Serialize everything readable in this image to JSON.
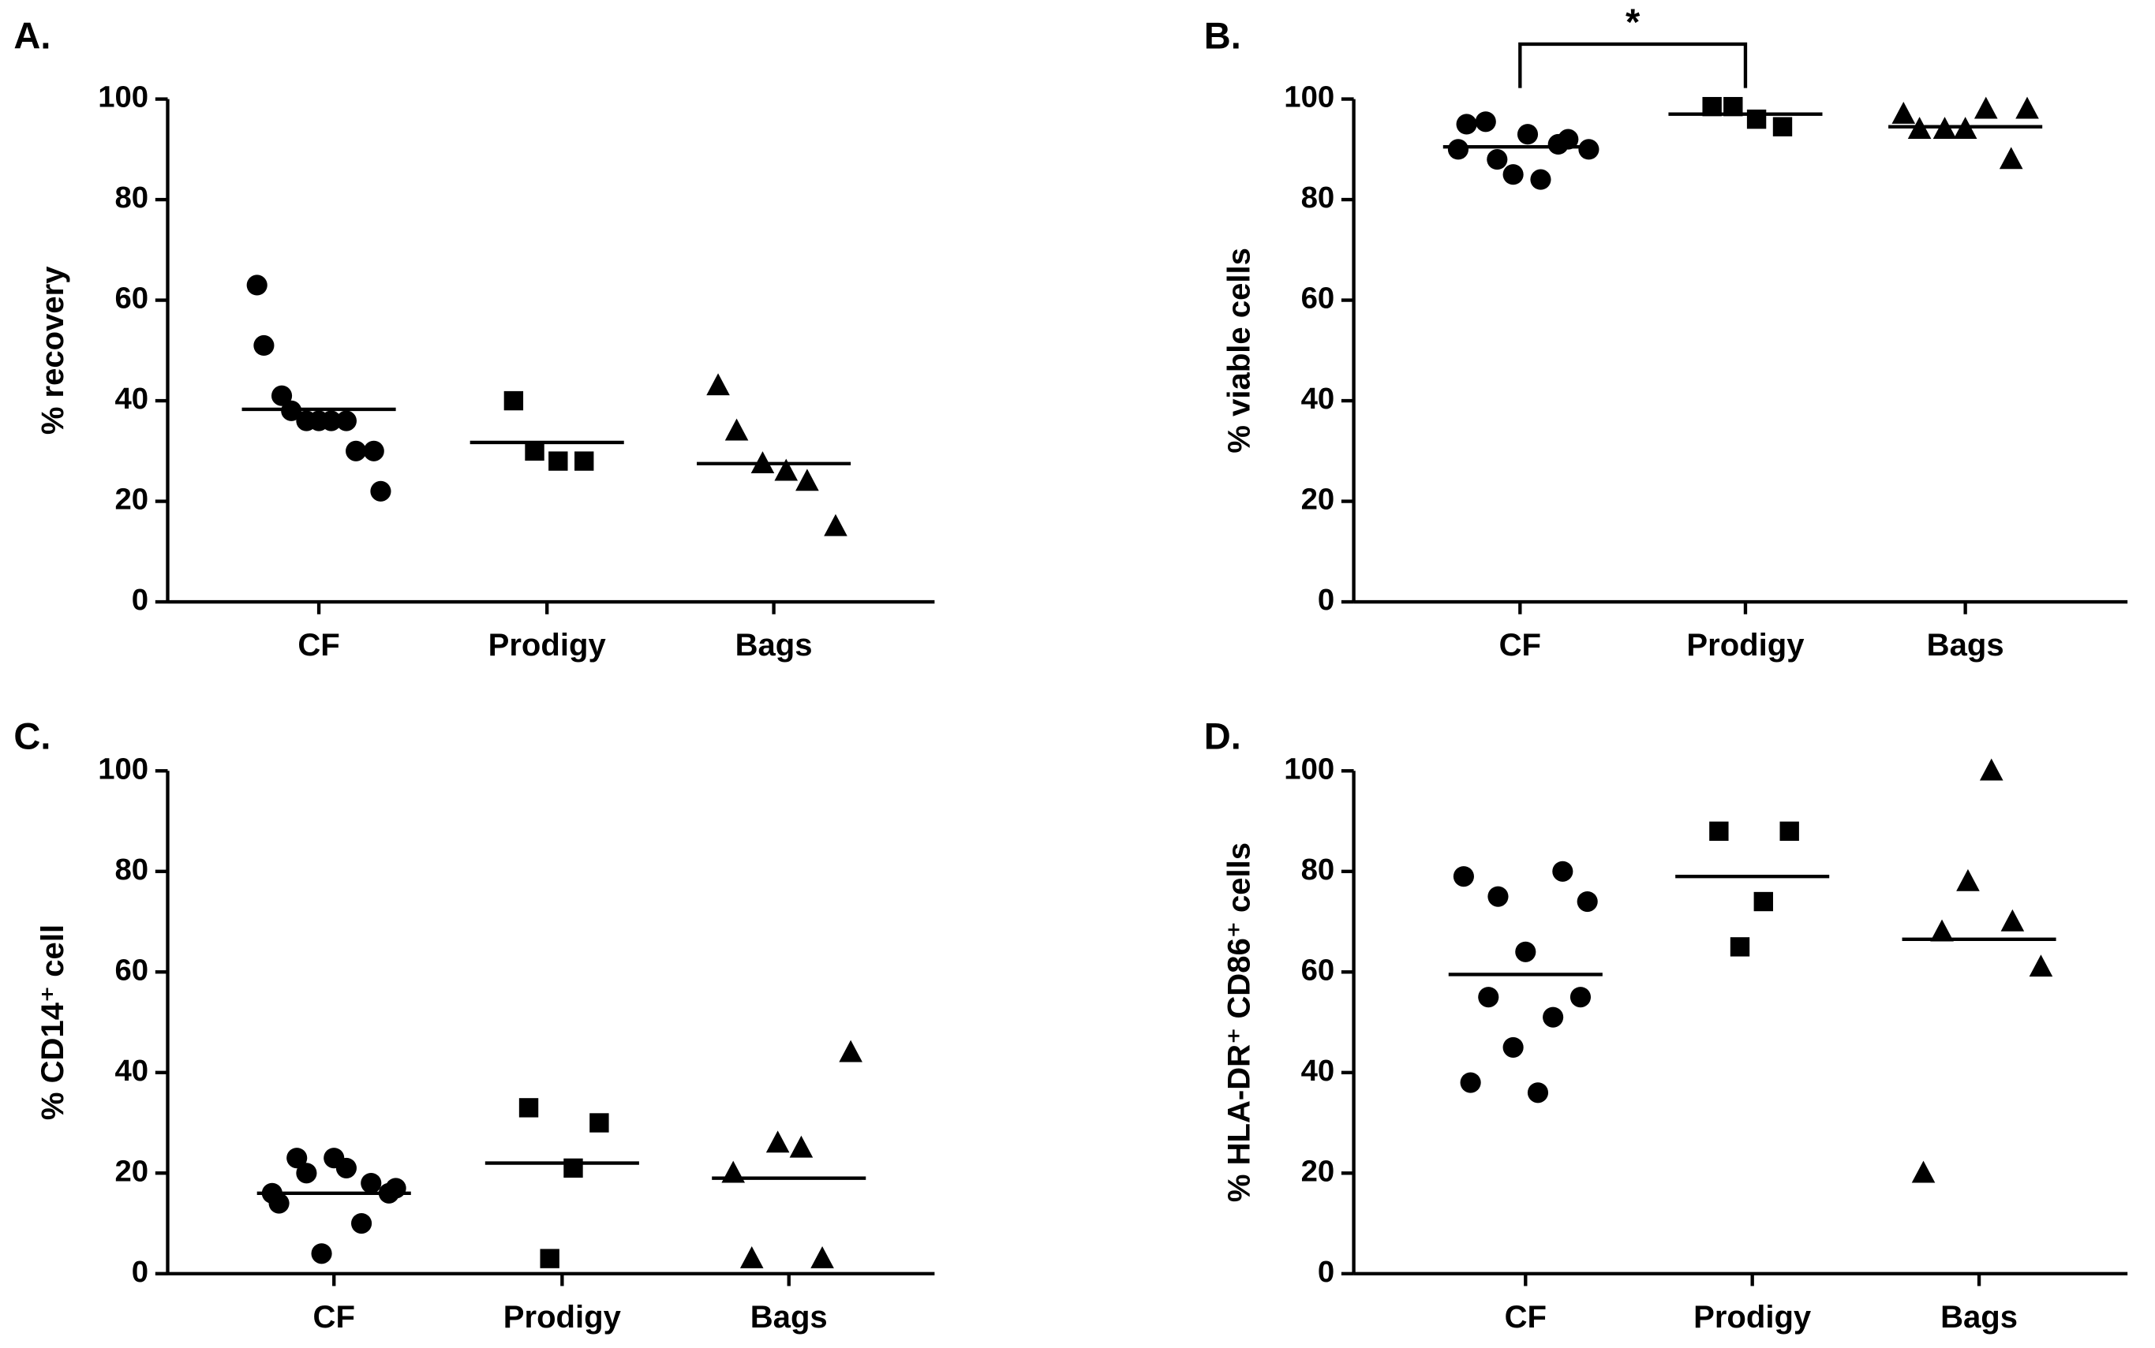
{
  "chart_data": [
    {
      "type": "strip",
      "panel": "A.",
      "ylabel": "% recovery",
      "categories": [
        "CF",
        "Prodigy",
        "Bags"
      ],
      "markers": [
        "circle",
        "square",
        "triangle"
      ],
      "color": "#000000",
      "values": [
        [
          63,
          51,
          41,
          38,
          36,
          36,
          36,
          36,
          30,
          30,
          22
        ],
        [
          40,
          30,
          28,
          28
        ],
        [
          43,
          34,
          27.5,
          26,
          24,
          15
        ]
      ],
      "means": [
        38.3,
        31.7,
        27.5
      ],
      "ylim": [
        0,
        100
      ],
      "yticks": [
        0,
        20,
        40,
        60,
        80,
        100
      ]
    },
    {
      "type": "strip",
      "panel": "B.",
      "ylabel": "% viable cells",
      "categories": [
        "CF",
        "Prodigy",
        "Bags"
      ],
      "markers": [
        "circle",
        "square",
        "triangle"
      ],
      "color": "#000000",
      "values": [
        [
          90,
          95,
          95.5,
          88,
          85,
          93,
          84,
          91,
          92,
          90
        ],
        [
          98.5,
          98.5,
          96,
          94.5
        ],
        [
          97,
          94,
          94,
          94,
          98,
          88,
          98
        ]
      ],
      "means": [
        90.5,
        97,
        94.5
      ],
      "significance": {
        "label": "*",
        "categories": [
          0,
          1
        ]
      },
      "ylim": [
        0,
        100
      ],
      "yticks": [
        0,
        20,
        40,
        60,
        80,
        100
      ]
    },
    {
      "type": "strip",
      "panel": "C.",
      "ylabel": "% CD14⁺ cell",
      "categories": [
        "CF",
        "Prodigy",
        "Bags"
      ],
      "markers": [
        "circle",
        "square",
        "triangle"
      ],
      "color": "#000000",
      "values": [
        [
          16,
          14,
          23,
          20,
          4,
          23,
          21,
          10,
          18,
          16,
          17
        ],
        [
          33,
          3,
          21,
          30
        ],
        [
          20,
          3,
          26,
          25,
          3,
          44
        ]
      ],
      "means": [
        16,
        22,
        19
      ],
      "ylim": [
        0,
        100
      ],
      "yticks": [
        0,
        20,
        40,
        60,
        80,
        100
      ]
    },
    {
      "type": "strip",
      "panel": "D.",
      "ylabel": "% HLA-DR⁺ CD86⁺ cells",
      "categories": [
        "CF",
        "Prodigy",
        "Bags"
      ],
      "markers": [
        "circle",
        "square",
        "triangle"
      ],
      "color": "#000000",
      "values": [
        [
          79,
          38,
          55,
          75,
          45,
          64,
          36,
          51,
          80,
          55,
          74
        ],
        [
          88,
          65,
          74,
          88
        ],
        [
          20,
          68,
          78,
          100,
          70,
          61
        ]
      ],
      "means": [
        59.5,
        79,
        66.5
      ],
      "ylim": [
        0,
        100
      ],
      "yticks": [
        0,
        20,
        40,
        60,
        80,
        100
      ]
    }
  ]
}
